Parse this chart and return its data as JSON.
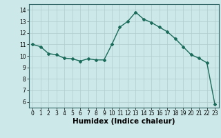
{
  "x": [
    0,
    1,
    2,
    3,
    4,
    5,
    6,
    7,
    8,
    9,
    10,
    11,
    12,
    13,
    14,
    15,
    16,
    17,
    18,
    19,
    20,
    21,
    22,
    23
  ],
  "y": [
    11.0,
    10.8,
    10.2,
    10.1,
    9.8,
    9.75,
    9.55,
    9.75,
    9.65,
    9.65,
    11.0,
    12.5,
    13.0,
    13.8,
    13.2,
    12.9,
    12.5,
    12.1,
    11.5,
    10.8,
    10.1,
    9.8,
    9.4,
    5.8
  ],
  "line_color": "#1a6b5a",
  "marker": "D",
  "marker_size": 2.0,
  "bg_color": "#cce8e8",
  "grid_color": "#b0cccc",
  "xlabel": "Humidex (Indice chaleur)",
  "ylim": [
    5.5,
    14.5
  ],
  "xlim": [
    -0.5,
    23.5
  ],
  "yticks": [
    6,
    7,
    8,
    9,
    10,
    11,
    12,
    13,
    14
  ],
  "xticks": [
    0,
    1,
    2,
    3,
    4,
    5,
    6,
    7,
    8,
    9,
    10,
    11,
    12,
    13,
    14,
    15,
    16,
    17,
    18,
    19,
    20,
    21,
    22,
    23
  ],
  "xtick_labels": [
    "0",
    "1",
    "2",
    "3",
    "4",
    "5",
    "6",
    "7",
    "8",
    "9",
    "10",
    "11",
    "12",
    "13",
    "14",
    "15",
    "16",
    "17",
    "18",
    "19",
    "20",
    "21",
    "22",
    "23"
  ],
  "ytick_labels": [
    "6",
    "7",
    "8",
    "9",
    "10",
    "11",
    "12",
    "13",
    "14"
  ],
  "tick_fontsize": 5.5,
  "xlabel_fontsize": 7.5,
  "xlabel_fontweight": "bold",
  "linewidth": 1.0
}
